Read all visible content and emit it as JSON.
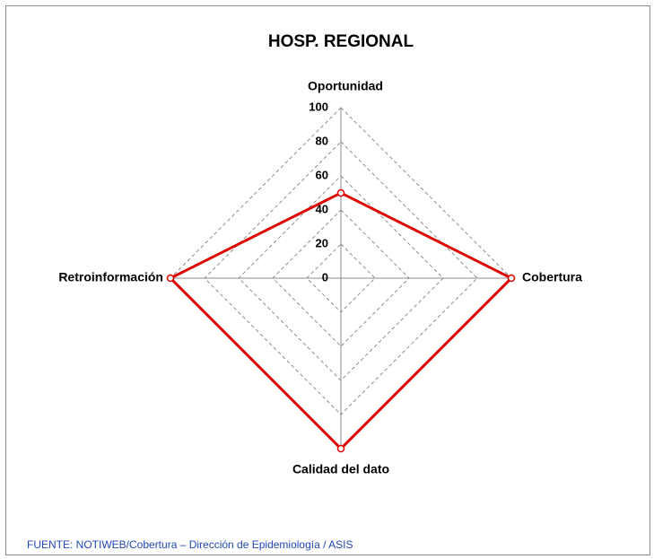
{
  "chart_data": {
    "type": "radar",
    "title": "HOSP. REGIONAL",
    "categories": [
      "Oportunidad",
      "Cobertura",
      "Calidad del dato",
      "Retroinformación"
    ],
    "values": [
      50,
      100,
      100,
      100
    ],
    "color": "#e00000",
    "ylim": [
      0,
      100
    ],
    "yticks": [
      0,
      20,
      40,
      60,
      80,
      100
    ],
    "grid": true
  },
  "footer": {
    "source": "FUENTE: NOTIWEB/Cobertura – Dirección de Epidemiología  / ASIS"
  }
}
